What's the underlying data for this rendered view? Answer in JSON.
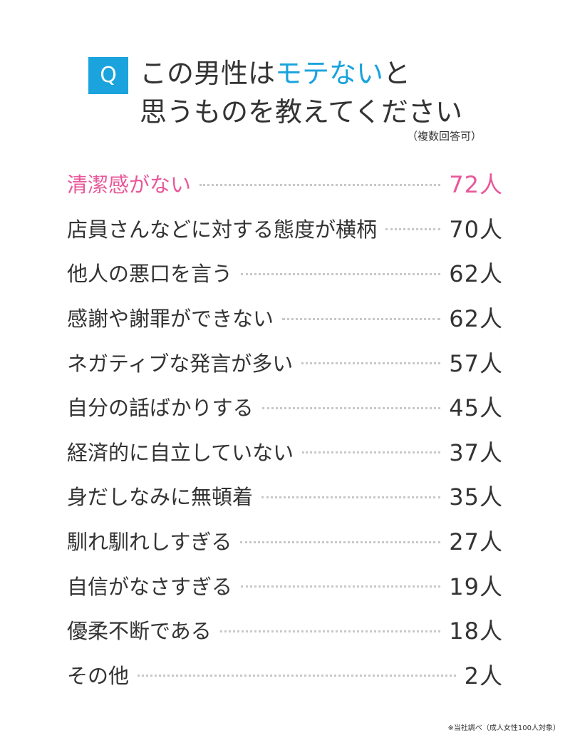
{
  "question": {
    "badge": "Q",
    "title_line1_pre": "この男性は",
    "title_line1_highlight": "モテない",
    "title_line1_post": "と",
    "title_line2": "思うものを教えてください",
    "note": "（複数回答可）"
  },
  "colors": {
    "accent_blue": "#1aa3dd",
    "highlight_pink": "#e8589a",
    "text": "#333333",
    "dots": "#c8c8c8"
  },
  "chart_data": {
    "type": "table",
    "unit": "人",
    "rows": [
      {
        "label": "清潔感がない",
        "value": 72,
        "display": "72人",
        "highlight": true
      },
      {
        "label": "店員さんなどに対する態度が横柄",
        "value": 70,
        "display": "70人",
        "highlight": false
      },
      {
        "label": "他人の悪口を言う",
        "value": 62,
        "display": "62人",
        "highlight": false
      },
      {
        "label": "感謝や謝罪ができない",
        "value": 62,
        "display": "62人",
        "highlight": false
      },
      {
        "label": "ネガティブな発言が多い",
        "value": 57,
        "display": "57人",
        "highlight": false
      },
      {
        "label": "自分の話ばかりする",
        "value": 45,
        "display": "45人",
        "highlight": false
      },
      {
        "label": "経済的に自立していない",
        "value": 37,
        "display": "37人",
        "highlight": false
      },
      {
        "label": "身だしなみに無頓着",
        "value": 35,
        "display": "35人",
        "highlight": false
      },
      {
        "label": "馴れ馴れしすぎる",
        "value": 27,
        "display": "27人",
        "highlight": false
      },
      {
        "label": "自信がなさすぎる",
        "value": 19,
        "display": "19人",
        "highlight": false
      },
      {
        "label": "優柔不断である",
        "value": 18,
        "display": "18人",
        "highlight": false
      },
      {
        "label": "その他",
        "value": 2,
        "display": "2人",
        "highlight": false
      }
    ]
  },
  "footnote": "※当社調べ（成人女性100人対象）"
}
